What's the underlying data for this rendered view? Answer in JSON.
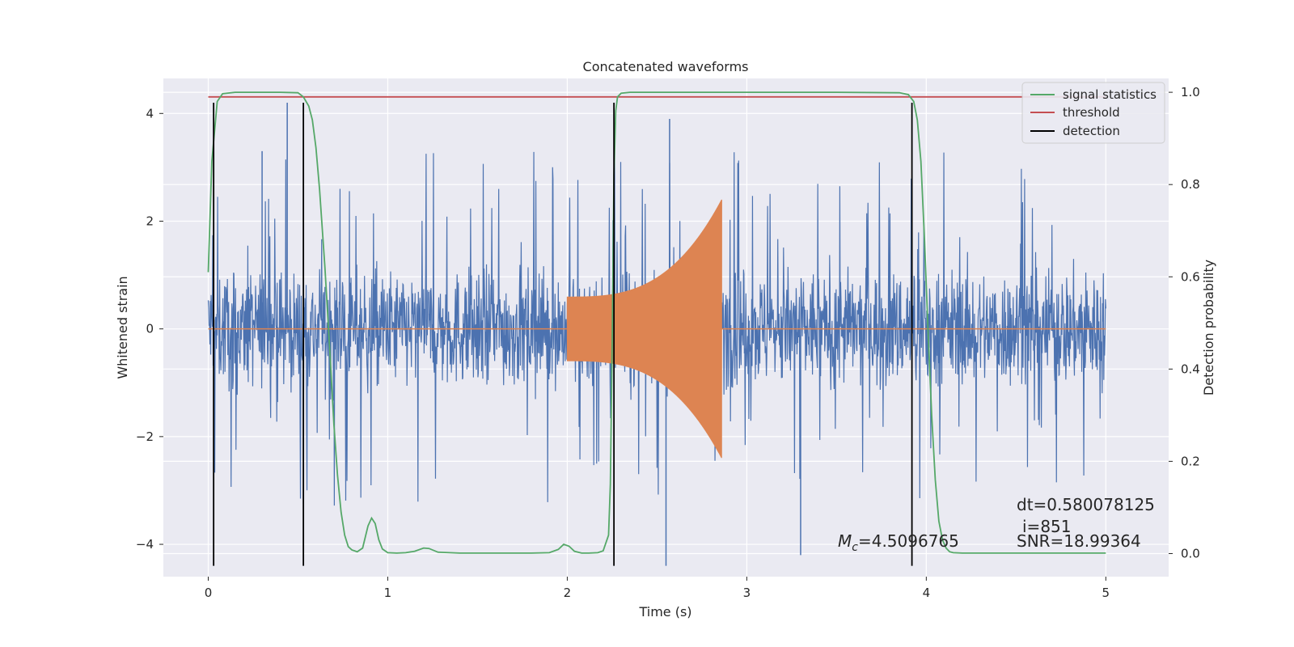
{
  "chart_data": {
    "type": "line",
    "title": "Concatenated waveforms",
    "xlabel": "Time (s)",
    "ylabel": "Whitened strain",
    "y2label": "Detection probability",
    "xlim": [
      -0.25,
      5.35
    ],
    "ylim": [
      -4.6,
      4.65
    ],
    "y2lim": [
      -0.05,
      1.03
    ],
    "xticks": [
      0,
      1,
      2,
      3,
      4,
      5
    ],
    "yticks": [
      -4,
      -2,
      0,
      2,
      4
    ],
    "y2ticks": [
      0.0,
      0.2,
      0.4,
      0.6,
      0.8,
      1.0
    ],
    "y2tick_labels": [
      "0.0",
      "0.2",
      "0.4",
      "0.6",
      "0.8",
      "1.0"
    ],
    "grid": true,
    "legend_position": "top-right",
    "colors": {
      "plot_bg": "#eaeaf2",
      "grid": "#ffffff",
      "noise": "#4c72b0",
      "signal": "#dd8452",
      "statistics": "#55a868",
      "threshold": "#c44e52",
      "detection": "#000000"
    },
    "series": [
      {
        "name": "whitened noise",
        "axis": "left",
        "description_x_range": [
          0,
          5
        ],
        "amplitude_band": [
          -1.1,
          1.1
        ],
        "peak_max": 4.2,
        "peak_min": -4.4
      },
      {
        "name": "injected chirp",
        "axis": "left",
        "x_range": [
          2.0,
          2.86
        ],
        "start_amplitude": 0.6,
        "end_amplitude": 2.4
      },
      {
        "name": "signal statistics",
        "axis": "right",
        "x": [
          0.0,
          0.02,
          0.05,
          0.08,
          0.15,
          0.4,
          0.5,
          0.53,
          0.56,
          0.58,
          0.6,
          0.62,
          0.65,
          0.68,
          0.7,
          0.72,
          0.74,
          0.76,
          0.78,
          0.8,
          0.83,
          0.86,
          0.89,
          0.91,
          0.93,
          0.95,
          0.97,
          1.0,
          1.05,
          1.1,
          1.15,
          1.2,
          1.23,
          1.28,
          1.4,
          1.6,
          1.8,
          1.9,
          1.95,
          1.98,
          2.01,
          2.04,
          2.08,
          2.12,
          2.17,
          2.2,
          2.23,
          2.24,
          2.25,
          2.26,
          2.27,
          2.28,
          2.3,
          2.35,
          2.5,
          3.0,
          3.5,
          3.85,
          3.9,
          3.93,
          3.95,
          3.97,
          3.99,
          4.01,
          4.03,
          4.05,
          4.07,
          4.09,
          4.11,
          4.13,
          4.15,
          4.2,
          4.5,
          5.0
        ],
        "values": [
          0.61,
          0.85,
          0.98,
          0.997,
          1.0,
          1.0,
          0.999,
          0.99,
          0.97,
          0.94,
          0.88,
          0.79,
          0.62,
          0.42,
          0.28,
          0.17,
          0.09,
          0.04,
          0.015,
          0.008,
          0.004,
          0.012,
          0.06,
          0.077,
          0.065,
          0.03,
          0.01,
          0.002,
          0.001,
          0.002,
          0.005,
          0.012,
          0.011,
          0.003,
          0.001,
          0.001,
          0.001,
          0.002,
          0.009,
          0.02,
          0.016,
          0.005,
          0.001,
          0.001,
          0.002,
          0.006,
          0.04,
          0.15,
          0.45,
          0.82,
          0.96,
          0.99,
          0.998,
          1.0,
          1.0,
          1.0,
          1.0,
          0.999,
          0.995,
          0.98,
          0.94,
          0.85,
          0.68,
          0.48,
          0.3,
          0.16,
          0.07,
          0.03,
          0.012,
          0.004,
          0.002,
          0.001,
          0.001,
          0.001
        ]
      },
      {
        "name": "threshold",
        "axis": "right",
        "value": 0.99,
        "x_range": [
          0,
          5
        ]
      },
      {
        "name": "detection",
        "axis": "left",
        "x": [
          0.03,
          0.53,
          2.26,
          3.92
        ],
        "y_range": [
          -4.4,
          4.2
        ]
      }
    ],
    "legend": [
      "signal statistics",
      "threshold",
      "detection"
    ],
    "annotations": {
      "dt": "dt=0.580078125",
      "i": "i=851",
      "snr": "SNR=18.99364",
      "mc_symbol": "M",
      "mc_subscript": "c",
      "mc_value": "=4.5096765"
    }
  }
}
